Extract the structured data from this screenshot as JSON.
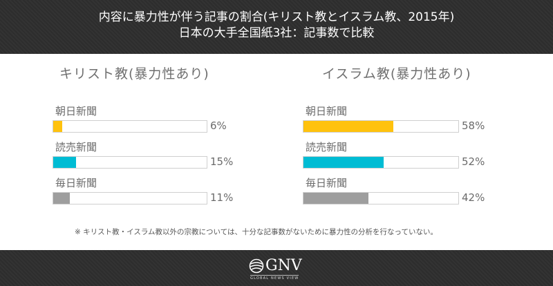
{
  "title": {
    "line1": "内容に暴力性が伴う記事の割合(キリスト教とイスラム教、2015年)",
    "line2": "日本の大手全国紙3社：記事数で比較"
  },
  "note": "※ キリスト教・イスラム教以外の宗教については、十分な記事数がないために暴力性の分析を行なっていない。",
  "logo": {
    "wordmark": "GNV",
    "tagline": "GLOBAL NEWS VIEW",
    "icon": "globe-icon"
  },
  "colors": {
    "header_bg": "#2e2e2e",
    "asahi": "#ffc20e",
    "yomiuri": "#00bcd4",
    "mainichi": "#9e9e9e",
    "track_border": "#cfcfcf"
  },
  "chart_data": [
    {
      "type": "bar",
      "orientation": "horizontal",
      "title": "キリスト教(暴力性あり)",
      "categories": [
        "朝日新聞",
        "読売新聞",
        "毎日新聞"
      ],
      "values": [
        6,
        15,
        11
      ],
      "value_labels": [
        "6%",
        "15%",
        "11%"
      ],
      "unit": "%",
      "xlim": [
        0,
        100
      ],
      "colors": [
        "#ffc20e",
        "#00bcd4",
        "#9e9e9e"
      ],
      "grid": false,
      "legend": false
    },
    {
      "type": "bar",
      "orientation": "horizontal",
      "title": "イスラム教(暴力性あり)",
      "categories": [
        "朝日新聞",
        "読売新聞",
        "毎日新聞"
      ],
      "values": [
        58,
        52,
        42
      ],
      "value_labels": [
        "58%",
        "52%",
        "42%"
      ],
      "unit": "%",
      "xlim": [
        0,
        100
      ],
      "colors": [
        "#ffc20e",
        "#00bcd4",
        "#9e9e9e"
      ],
      "grid": false,
      "legend": false
    }
  ]
}
